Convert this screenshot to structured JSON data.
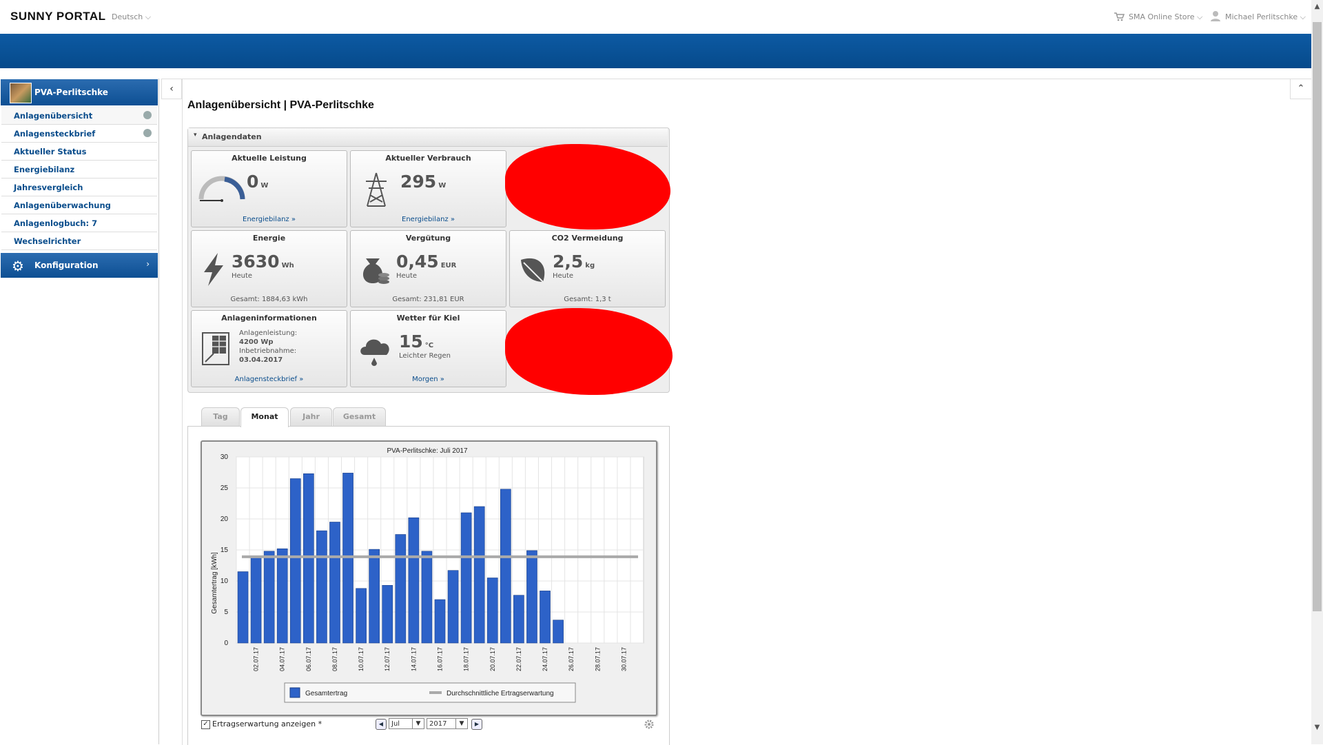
{
  "header": {
    "logo": "SUNNY PORTAL",
    "language": "Deutsch ⌵",
    "store": "SMA Online Store ⌵",
    "user": "Michael Perlitschke ⌵"
  },
  "sidebar": {
    "plant_name": "PVA-Perlitschke",
    "items": [
      {
        "label": "Anlagenübersicht"
      },
      {
        "label": "Anlagensteckbrief"
      },
      {
        "label": "Aktueller Status"
      },
      {
        "label": "Energiebilanz"
      },
      {
        "label": "Jahresvergleich"
      },
      {
        "label": "Anlagenüberwachung"
      },
      {
        "label": "Anlagenlogbuch: 7"
      },
      {
        "label": "Wechselrichter"
      }
    ],
    "config_label": "Konfiguration"
  },
  "page": {
    "title": "Anlagenübersicht | PVA-Perlitschke"
  },
  "panel": {
    "title": "Anlagendaten",
    "tiles": {
      "leistung": {
        "title": "Aktuelle Leistung",
        "value": "0",
        "unit": "W",
        "link": "Energiebilanz »"
      },
      "verbrauch": {
        "title": "Aktueller Verbrauch",
        "value": "295",
        "unit": "W",
        "link": "Energiebilanz »"
      },
      "energie": {
        "title": "Energie",
        "value": "3630",
        "unit": "Wh",
        "sub": "Heute",
        "foot": "Gesamt: 1884,63 kWh"
      },
      "verguetung": {
        "title": "Vergütung",
        "value": "0,45",
        "unit": "EUR",
        "sub": "Heute",
        "foot": "Gesamt: 231,81 EUR"
      },
      "co2": {
        "title": "CO2 Vermeidung",
        "value": "2,5",
        "unit": "kg",
        "sub": "Heute",
        "foot": "Gesamt: 1,3 t"
      },
      "info": {
        "title": "Anlageninformationen",
        "l1": "Anlagenleistung:",
        "l2": "4200 Wp",
        "l3": "Inbetriebnahme:",
        "l4": "03.04.2017",
        "link": "Anlagensteckbrief »"
      },
      "wetter": {
        "title": "Wetter für Kiel",
        "value": "15",
        "unit": "°C",
        "sub": "Leichter Regen",
        "link": "Morgen »"
      }
    }
  },
  "tabs": [
    "Tag",
    "Monat",
    "Jahr",
    "Gesamt"
  ],
  "active_tab": "Monat",
  "controls": {
    "checkbox_label": "Ertragserwartung anzeigen *",
    "checked": true,
    "month": "Jul",
    "year": "2017"
  },
  "colors": {
    "brand_blue": "#0a4d8c",
    "bar": "#2d62c8",
    "expectation_line": "#aaaaaa",
    "redaction": "#ff0000"
  },
  "chart_data": {
    "type": "bar",
    "title": "PVA-Perlitschke: Juli 2017",
    "ylabel": "Gesamtertrag [kWh]",
    "ylim": [
      0,
      30
    ],
    "yticks": [
      0,
      5,
      10,
      15,
      20,
      25,
      30
    ],
    "categories": [
      "01.07.17",
      "02.07.17",
      "03.07.17",
      "04.07.17",
      "05.07.17",
      "06.07.17",
      "07.07.17",
      "08.07.17",
      "09.07.17",
      "10.07.17",
      "11.07.17",
      "12.07.17",
      "13.07.17",
      "14.07.17",
      "15.07.17",
      "16.07.17",
      "17.07.17",
      "18.07.17",
      "19.07.17",
      "20.07.17",
      "21.07.17",
      "22.07.17",
      "23.07.17",
      "24.07.17",
      "25.07.17",
      "26.07.17",
      "27.07.17",
      "28.07.17",
      "29.07.17",
      "30.07.17",
      "31.07.17"
    ],
    "tick_labels": [
      "02.07.17",
      "04.07.17",
      "06.07.17",
      "08.07.17",
      "10.07.17",
      "12.07.17",
      "14.07.17",
      "16.07.17",
      "18.07.17",
      "20.07.17",
      "22.07.17",
      "24.07.17",
      "26.07.17",
      "28.07.17",
      "30.07.17"
    ],
    "series": [
      {
        "name": "Gesamtertrag",
        "values": [
          11.5,
          13.8,
          14.8,
          15.2,
          26.5,
          27.3,
          18.1,
          19.5,
          27.4,
          8.8,
          15.1,
          9.3,
          17.5,
          20.2,
          14.8,
          7,
          11.7,
          21,
          22,
          10.5,
          24.8,
          7.7,
          14.9,
          8.4,
          3.7,
          0,
          0,
          0,
          0,
          0,
          0
        ]
      },
      {
        "name": "Durchschnittliche Ertragserwartung",
        "values": [
          13.9,
          13.9,
          13.9,
          13.9,
          13.9,
          13.9,
          13.9,
          13.9,
          13.9,
          13.9,
          13.9,
          13.9,
          13.9,
          13.9,
          13.9,
          13.9,
          13.9,
          13.9,
          13.9,
          13.9,
          13.9,
          13.9,
          13.9,
          13.9,
          13.9,
          13.9,
          13.9,
          13.9,
          13.9,
          13.9,
          13.9
        ]
      }
    ],
    "legend": "bottom",
    "grid": true
  }
}
